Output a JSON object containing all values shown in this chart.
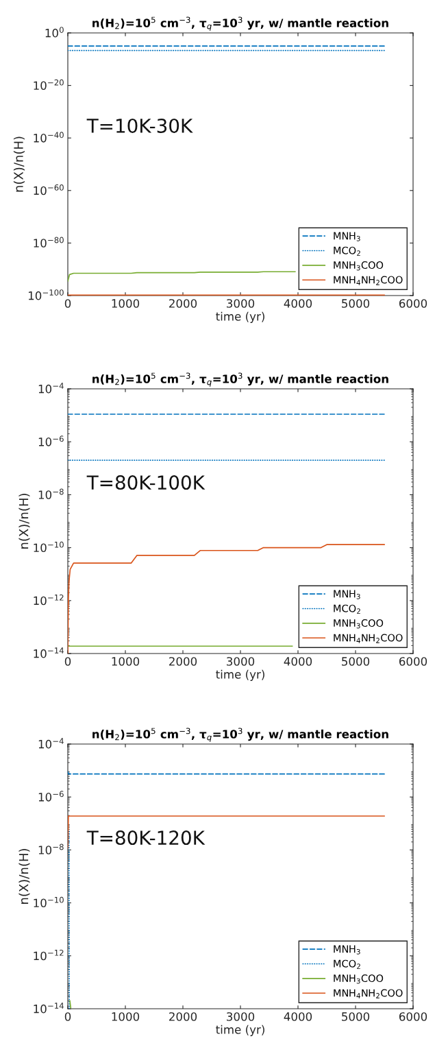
{
  "chart_data": [
    {
      "type": "line",
      "title": "n(H$_{2}$)=10$^{5}$ cm$^{−3}$, τ$_{q}$=10$^{3}$ yr, w/ mantle reaction",
      "xlabel": "time (yr)",
      "ylabel": "n(X)/n(H)",
      "log": "y",
      "legend": "bottom right",
      "grid": false,
      "xlim": [
        0,
        6000
      ],
      "xticks": [
        0,
        1000,
        2000,
        3000,
        4000,
        5000,
        6000
      ],
      "ylim": [
        1e-100,
        1
      ],
      "yticks": [
        {
          "value": 1,
          "label": "10$^{0}$"
        },
        {
          "value": 1e-20,
          "label": "10$^{−20}$"
        },
        {
          "value": 1e-40,
          "label": "10$^{−40}$"
        },
        {
          "value": 1e-60,
          "label": "10$^{−60}$"
        },
        {
          "value": 1e-80,
          "label": "10$^{−80}$"
        },
        {
          "value": 1e-100,
          "label": "10$^{−100}$"
        }
      ],
      "annotations": [
        "T=10K-30K"
      ],
      "series": [
        {
          "name": "MNH$_{3}$",
          "color": "#0072bd",
          "line_style": "dashed",
          "x": [
            0,
            5500
          ],
          "values": [
            1e-05,
            1e-05
          ]
        },
        {
          "name": "MCO$_{2}$",
          "color": "#0072bd",
          "line_style": "dotted",
          "x": [
            0,
            5500
          ],
          "values": [
            2e-07,
            2e-07
          ]
        },
        {
          "name": "MNH$_{3}$COO",
          "color": "#77ac30",
          "line_style": "solid",
          "x": [
            0,
            30,
            100,
            1100,
            1200,
            2200,
            2300,
            3300,
            3400,
            3950
          ],
          "values": [
            3e-95,
            1e-92,
            3e-92,
            3e-92,
            5e-92,
            5e-92,
            8e-92,
            8e-92,
            1.2e-91,
            1.2e-91
          ]
        },
        {
          "name": "MNH$_{4}$NH$_{2}$COO",
          "color": "#d95319",
          "line_style": "solid",
          "x": [
            0,
            5500
          ],
          "values": [
            1.6e-100,
            1.6e-100
          ]
        }
      ]
    },
    {
      "type": "line",
      "title": "n(H$_{2}$)=10$^{5}$ cm$^{−3}$, τ$_{q}$=10$^{3}$ yr, w/ mantle reaction",
      "xlabel": "time (yr)",
      "ylabel": "n(X)/n(H)",
      "log": "y",
      "legend": "bottom right",
      "grid": false,
      "xlim": [
        0,
        6000
      ],
      "xticks": [
        0,
        1000,
        2000,
        3000,
        4000,
        5000,
        6000
      ],
      "ylim": [
        1e-14,
        0.0001
      ],
      "yticks": [
        {
          "value": 0.0001,
          "label": "10$^{−4}$"
        },
        {
          "value": 1e-06,
          "label": "10$^{−6}$"
        },
        {
          "value": 1e-08,
          "label": "10$^{−8}$"
        },
        {
          "value": 1e-10,
          "label": "10$^{−10}$"
        },
        {
          "value": 1e-12,
          "label": "10$^{−12}$"
        },
        {
          "value": 1e-14,
          "label": "10$^{−14}$"
        }
      ],
      "annotations": [
        "T=80K-100K"
      ],
      "series": [
        {
          "name": "MNH$_{3}$",
          "color": "#0072bd",
          "line_style": "dashed",
          "x": [
            0,
            5500
          ],
          "values": [
            1.1e-05,
            1.1e-05
          ]
        },
        {
          "name": "MCO$_{2}$",
          "color": "#0072bd",
          "line_style": "dotted",
          "x": [
            0,
            5500
          ],
          "values": [
            2e-07,
            2e-07
          ]
        },
        {
          "name": "MNH$_{3}$COO",
          "color": "#77ac30",
          "line_style": "solid",
          "x": [
            0,
            3900
          ],
          "values": [
            1.9e-14,
            1.9e-14
          ]
        },
        {
          "name": "MNH$_{4}$NH$_{2}$COO",
          "color": "#d95319",
          "line_style": "solid",
          "x": [
            0,
            10,
            20,
            40,
            100,
            1100,
            1200,
            2200,
            2300,
            3300,
            3400,
            4400,
            4500,
            5500
          ],
          "values": [
            1e-14,
            1e-12,
            5e-12,
            1.5e-11,
            2.6e-11,
            2.6e-11,
            5.1e-11,
            5.1e-11,
            7.8e-11,
            7.8e-11,
            1e-10,
            1e-10,
            1.3e-10,
            1.3e-10
          ]
        }
      ]
    },
    {
      "type": "line",
      "title": "n(H$_{2}$)=10$^{5}$ cm$^{−3}$, τ$_{q}$=10$^{3}$ yr, w/ mantle reaction",
      "xlabel": "time (yr)",
      "ylabel": "n(X)/n(H)",
      "log": "y",
      "legend": "bottom right",
      "grid": false,
      "xlim": [
        0,
        6000
      ],
      "xticks": [
        0,
        1000,
        2000,
        3000,
        4000,
        5000,
        6000
      ],
      "ylim": [
        1e-14,
        0.0001
      ],
      "yticks": [
        {
          "value": 0.0001,
          "label": "10$^{−4}$"
        },
        {
          "value": 1e-06,
          "label": "10$^{−6}$"
        },
        {
          "value": 1e-08,
          "label": "10$^{−8}$"
        },
        {
          "value": 1e-10,
          "label": "10$^{−10}$"
        },
        {
          "value": 1e-12,
          "label": "10$^{−12}$"
        },
        {
          "value": 1e-14,
          "label": "10$^{−14}$"
        }
      ],
      "annotations": [
        "T=80K-120K"
      ],
      "series": [
        {
          "name": "MNH$_{3}$",
          "color": "#0072bd",
          "line_style": "dashed",
          "x": [
            0,
            10,
            5500
          ],
          "values": [
            9e-06,
            7.4e-06,
            7.4e-06
          ]
        },
        {
          "name": "MCO$_{2}$",
          "color": "#0072bd",
          "line_style": "dotted",
          "x": [
            20,
            22,
            25
          ],
          "values": [
            5e-08,
            1e-10,
            1e-14
          ]
        },
        {
          "name": "MNH$_{3}$COO",
          "color": "#77ac30",
          "line_style": "solid",
          "x": [
            35,
            50
          ],
          "values": [
            2e-14,
            1.1e-14
          ]
        },
        {
          "name": "MNH$_{4}$NH$_{2}$COO",
          "color": "#d95319",
          "line_style": "solid",
          "x": [
            0,
            10,
            5500
          ],
          "values": [
            1.2e-08,
            1.9e-07,
            1.9e-07
          ]
        }
      ]
    }
  ]
}
